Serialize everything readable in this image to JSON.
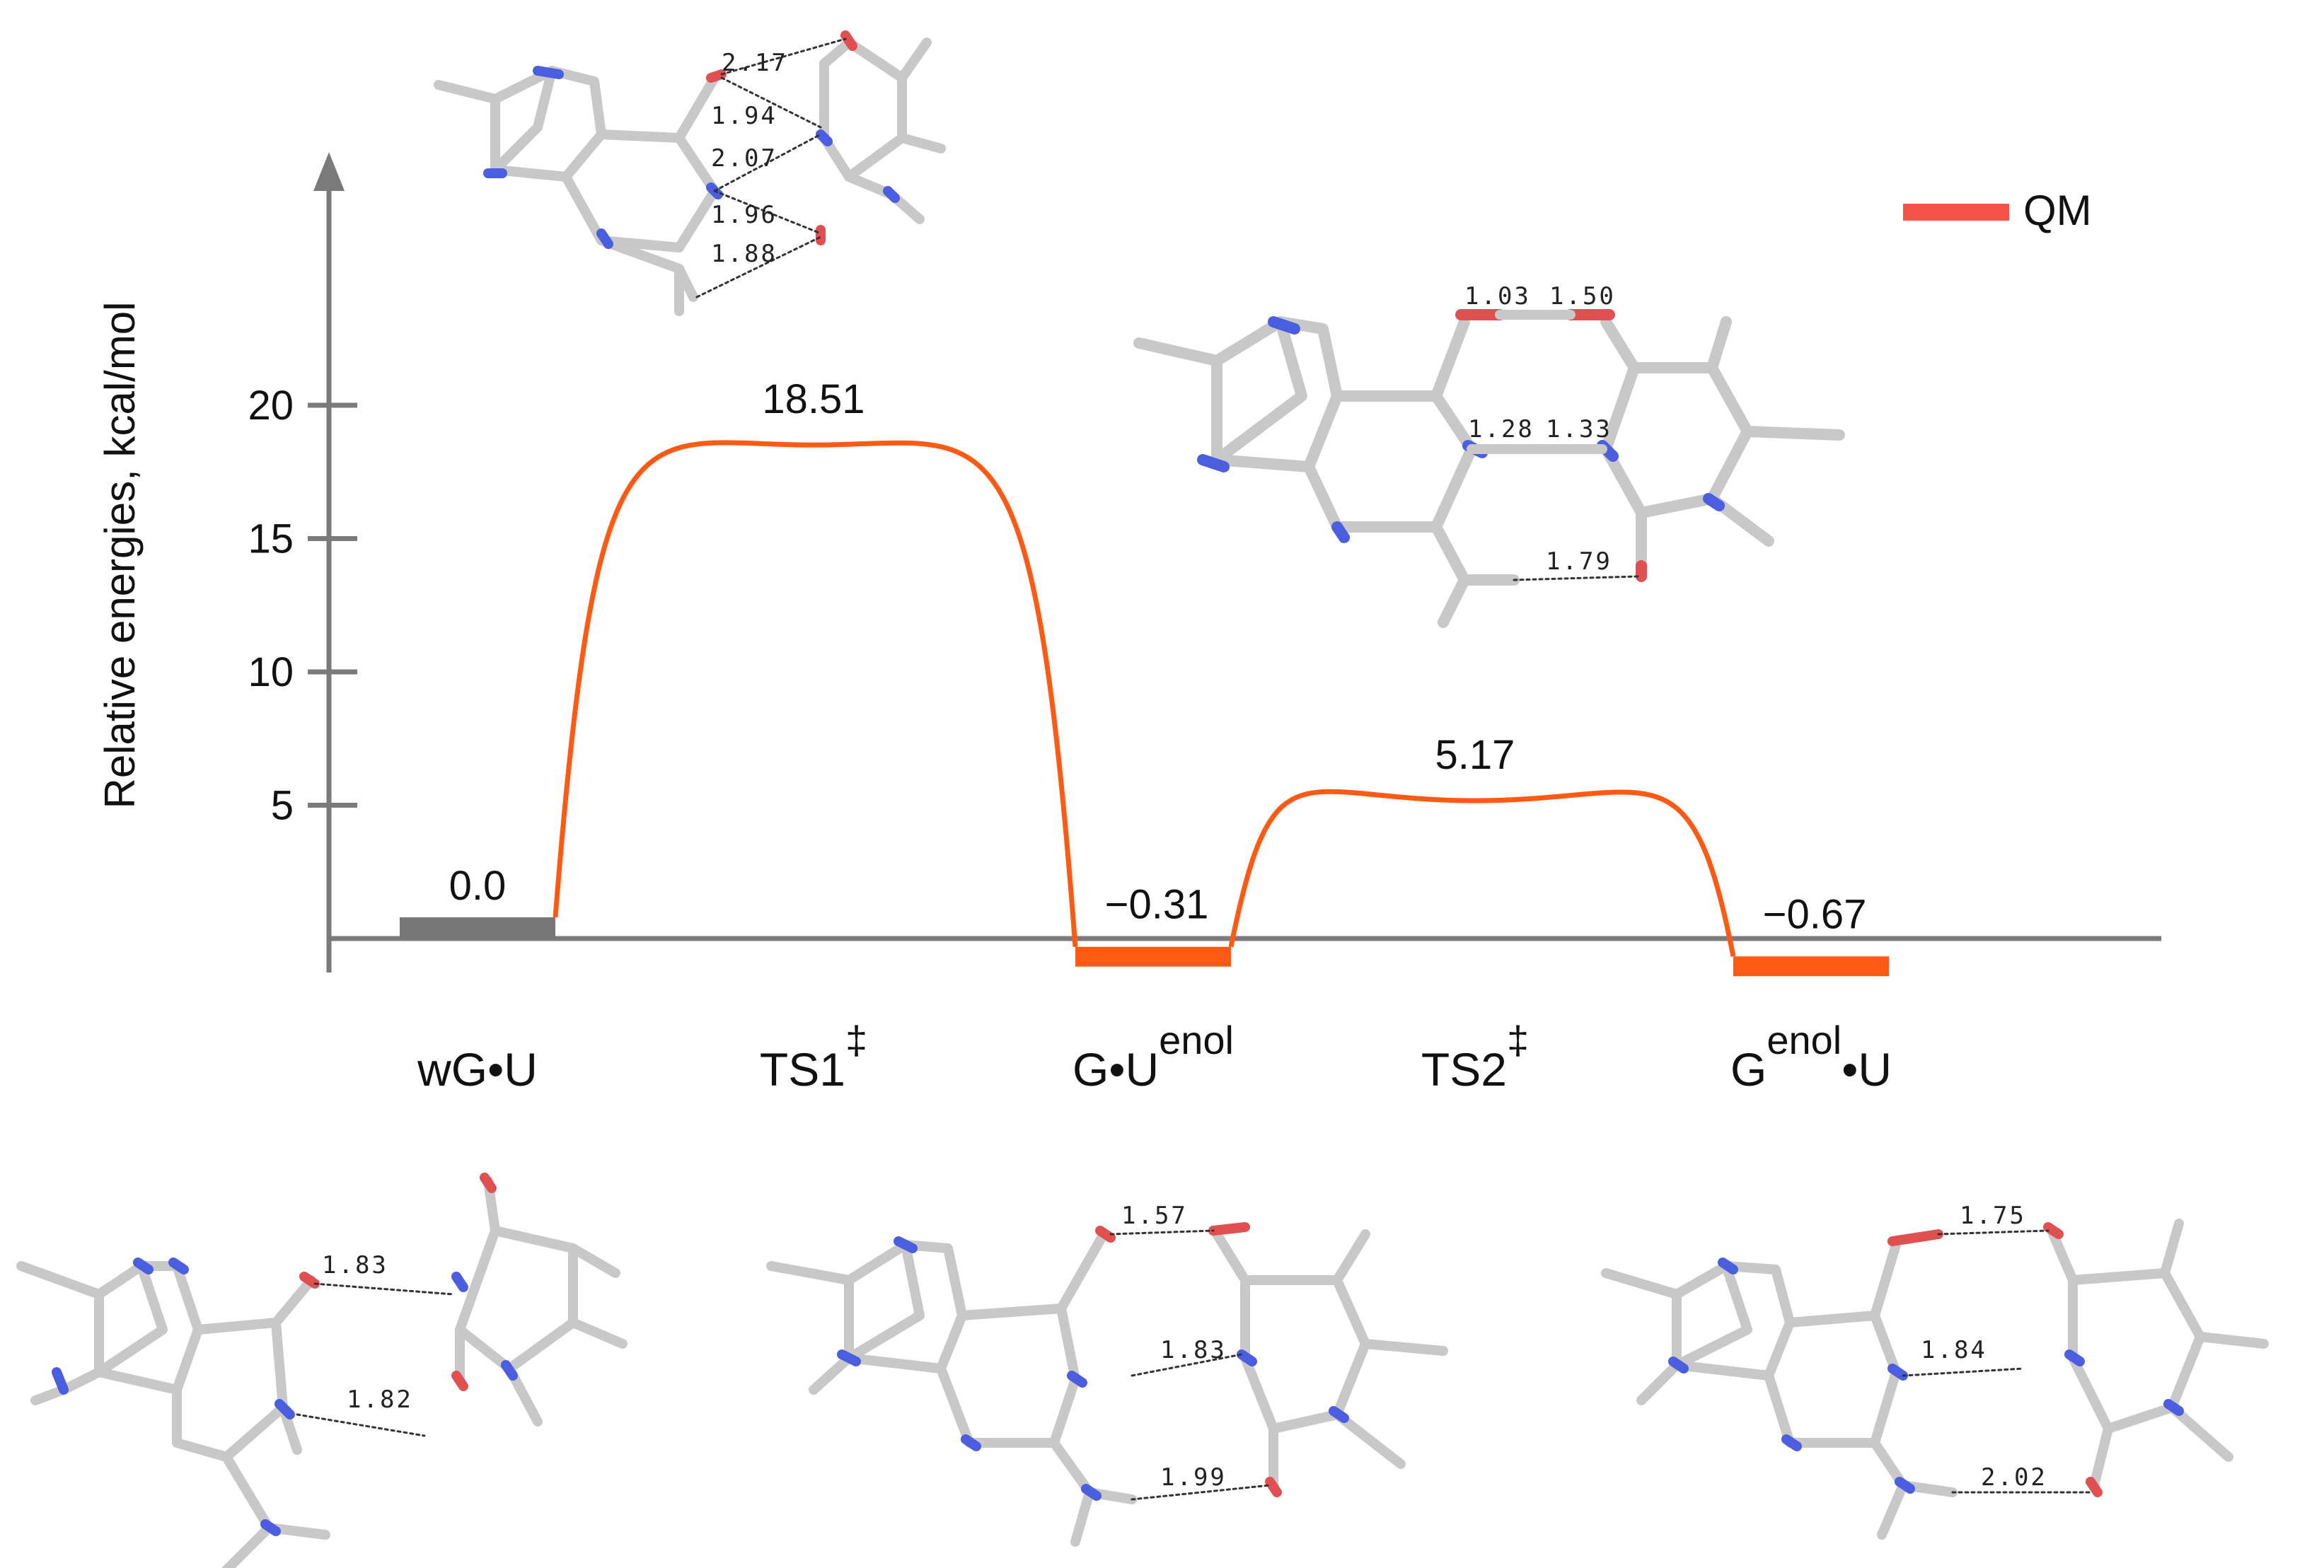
{
  "chart_data": {
    "type": "energy_profile",
    "ylabel": "Relative energies, kcal/mol",
    "yticks": [
      5,
      10,
      15,
      20
    ],
    "ylim": [
      -1,
      25
    ],
    "legend": {
      "label": "QM",
      "color": "#f5524a",
      "placement": "top-right"
    },
    "states": [
      {
        "name": "wG•U",
        "base": "wG•U",
        "sup": "",
        "suffix": "",
        "energy": 0.0,
        "label": "0.0",
        "kind": "minimum",
        "color": "#777777"
      },
      {
        "name": "TS1‡",
        "base": "TS1",
        "sup": "‡",
        "suffix": "",
        "energy": 18.51,
        "label": "18.51",
        "kind": "transition",
        "color": "#ff5a14"
      },
      {
        "name": "G•Uenol",
        "base": "G•U",
        "sup": "enol",
        "suffix": "",
        "energy": -0.31,
        "label": "−0.31",
        "kind": "minimum",
        "color": "#ff5a14"
      },
      {
        "name": "TS2‡",
        "base": "TS2",
        "sup": "‡",
        "suffix": "",
        "energy": 5.17,
        "label": "5.17",
        "kind": "transition",
        "color": "#ff5a14"
      },
      {
        "name": "Genol•U",
        "base": "G",
        "sup": "enol",
        "suffix": "•U",
        "energy": -0.67,
        "label": "−0.67",
        "kind": "minimum",
        "color": "#ff5a14"
      }
    ]
  },
  "structures": {
    "ts1": [
      "2.17",
      "1.94",
      "2.07",
      "1.96",
      "1.88"
    ],
    "ts2": [
      "1.03",
      "1.50",
      "1.28",
      "1.33",
      "1.79"
    ],
    "wGU": [
      "1.83",
      "1.82"
    ],
    "GUenol": [
      "1.57",
      "1.83",
      "1.99"
    ],
    "GenolU": [
      "1.75",
      "1.84",
      "2.02"
    ]
  }
}
